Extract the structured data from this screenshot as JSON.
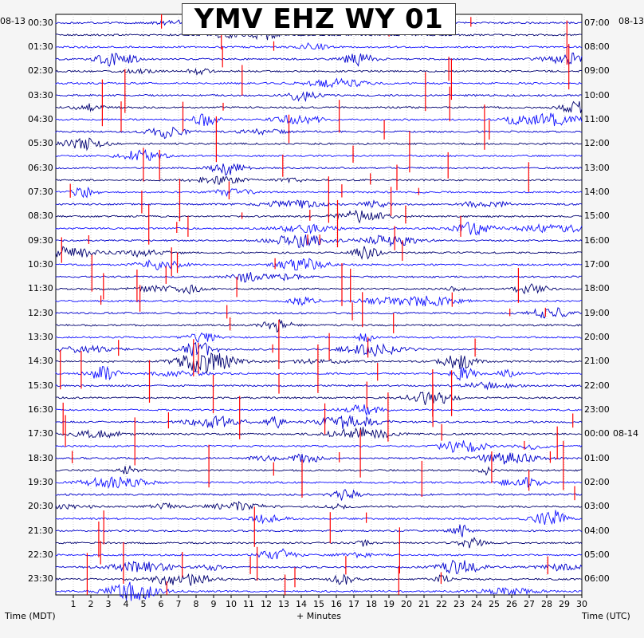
{
  "chart_data": {
    "type": "line",
    "title": "YMV EHZ WY 01",
    "left_date": "08-13",
    "right_date": "08-13",
    "next_date": "08-14",
    "xlabel": "+ Minutes",
    "left_axis_label": "Time (MDT)",
    "right_axis_label": "Time (UTC)",
    "x_ticks": [
      "1",
      "2",
      "3",
      "4",
      "5",
      "6",
      "7",
      "8",
      "9",
      "10",
      "11",
      "12",
      "13",
      "14",
      "15",
      "16",
      "17",
      "18",
      "19",
      "20",
      "21",
      "22",
      "23",
      "24",
      "25",
      "26",
      "27",
      "28",
      "29",
      "30"
    ],
    "xlim": [
      0,
      30
    ],
    "left_hour_labels": [
      "00:30",
      "01:30",
      "02:30",
      "03:30",
      "04:30",
      "05:30",
      "06:30",
      "07:30",
      "08:30",
      "09:30",
      "10:30",
      "11:30",
      "12:30",
      "13:30",
      "14:30",
      "15:30",
      "16:30",
      "17:30",
      "18:30",
      "19:30",
      "20:30",
      "21:30",
      "22:30",
      "23:30"
    ],
    "right_hour_labels": [
      "07:00",
      "08:00",
      "09:00",
      "10:00",
      "11:00",
      "12:00",
      "13:00",
      "14:00",
      "15:00",
      "16:00",
      "17:00",
      "18:00",
      "19:00",
      "20:00",
      "21:00",
      "22:00",
      "23:00",
      "00:00",
      "01:00",
      "02:00",
      "03:00",
      "04:00",
      "05:00",
      "06:00"
    ],
    "traces_per_hour": 2,
    "trace_count": 48,
    "trace_colors": [
      "#0000cd",
      "#000070",
      "#1010ff"
    ],
    "clip_color": "#ff0000",
    "grid": true
  }
}
